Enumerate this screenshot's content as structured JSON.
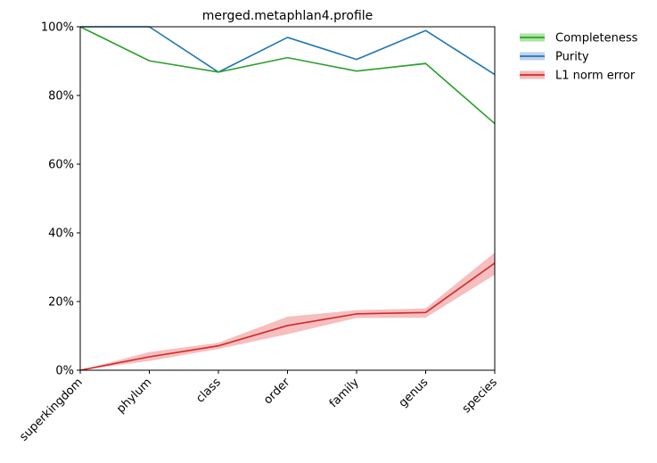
{
  "chart_data": {
    "type": "line",
    "title": "merged.metaphlan4.profile",
    "xlabel": "",
    "ylabel": "",
    "categories": [
      "superkingdom",
      "phylum",
      "class",
      "order",
      "family",
      "genus",
      "species"
    ],
    "ylim": [
      0,
      100
    ],
    "yticks": [
      0,
      20,
      40,
      60,
      80,
      100
    ],
    "ytick_labels": [
      "0%",
      "20%",
      "40%",
      "60%",
      "80%",
      "100%"
    ],
    "grid": false,
    "legend_position": "outside-top-right",
    "series": [
      {
        "name": "Completeness",
        "color": "#2ca02c",
        "band_color": "#98df8a",
        "values": [
          100,
          90.1,
          86.8,
          91,
          87.1,
          89.3,
          71.8
        ],
        "lower": [
          100,
          90.1,
          86.8,
          91,
          87.1,
          89.0,
          71.6
        ],
        "upper": [
          100,
          90.1,
          86.8,
          91,
          87.1,
          89.6,
          72.0
        ]
      },
      {
        "name": "Purity",
        "color": "#1f77b4",
        "band_color": "#aec7e8",
        "values": [
          100,
          100,
          86.8,
          96.9,
          90.5,
          98.9,
          86.1
        ],
        "lower": [
          100,
          100,
          86.8,
          96.9,
          90.5,
          98.9,
          86.1
        ],
        "upper": [
          100,
          100,
          86.8,
          96.9,
          90.5,
          98.9,
          86.1
        ]
      },
      {
        "name": "L1 norm error",
        "color": "#d62728",
        "band_color": "#f1a9a9",
        "values": [
          0,
          3.9,
          7.1,
          13.0,
          16.4,
          16.8,
          31.2
        ],
        "lower": [
          0,
          2.7,
          6.2,
          10.5,
          15.2,
          15.3,
          27.8
        ],
        "upper": [
          0,
          5.3,
          8.0,
          15.6,
          17.5,
          18.0,
          34.3
        ]
      }
    ]
  }
}
